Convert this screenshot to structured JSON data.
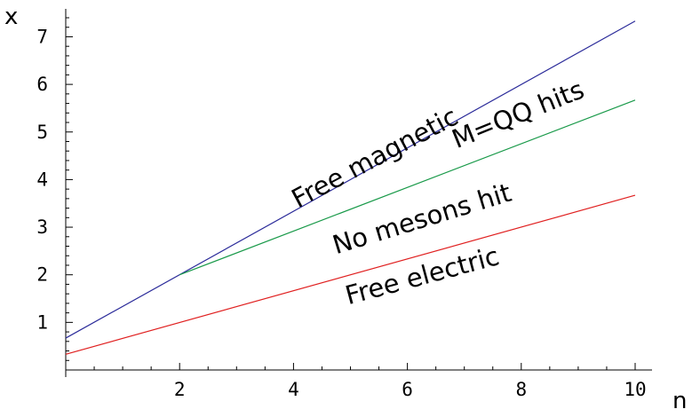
{
  "chart_data": {
    "type": "line",
    "title": "",
    "xlabel": "n",
    "ylabel": "x",
    "xlim": [
      0,
      10.3
    ],
    "ylim": [
      0,
      7.5
    ],
    "x_ticks": [
      2,
      4,
      6,
      8,
      10
    ],
    "y_ticks": [
      1,
      2,
      3,
      4,
      5,
      6,
      7
    ],
    "grid": false,
    "legend": "none",
    "series": [
      {
        "color": "#2b2b9a",
        "x": [
          0,
          10
        ],
        "y": [
          0.67,
          7.33
        ]
      },
      {
        "color": "#1a9a4a",
        "x": [
          2,
          10
        ],
        "y": [
          2.0,
          5.67
        ]
      },
      {
        "color": "#e02020",
        "x": [
          0,
          10
        ],
        "y": [
          0.33,
          3.67
        ]
      }
    ],
    "annotations": [
      {
        "text": "Free magnetic",
        "x": 5.5,
        "y": 4.3,
        "angle": -28
      },
      {
        "text": "M=QQ hits",
        "x": 8.0,
        "y": 5.2,
        "angle": -22
      },
      {
        "text": "No mesons hit",
        "x": 6.3,
        "y": 3.0,
        "angle": -17
      },
      {
        "text": "Free electric",
        "x": 6.3,
        "y": 1.8,
        "angle": -15
      }
    ]
  }
}
